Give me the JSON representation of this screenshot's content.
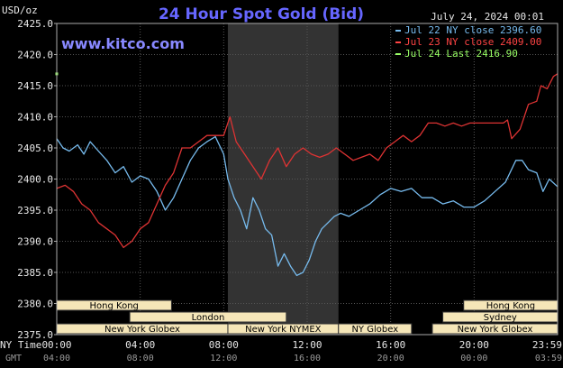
{
  "chart_data": {
    "type": "line",
    "title": "24 Hour Spot Gold (Bid)",
    "site": "www.kitco.com",
    "date_label": "July 24, 2024 00:01",
    "ylabel": "USD/oz",
    "ylim": [
      2375,
      2425
    ],
    "y_ticks": [
      "2425.0",
      "2420.0",
      "2415.0",
      "2410.0",
      "2405.0",
      "2400.0",
      "2395.0",
      "2390.0",
      "2385.0",
      "2380.0",
      "2375.0"
    ],
    "x_axis_label": "NY Time",
    "gmt_label": "GMT",
    "x_ticks_ny": [
      "00:00",
      "04:00",
      "08:00",
      "12:00",
      "16:00",
      "20:00",
      "23:59"
    ],
    "x_ticks_gmt": [
      "04:00",
      "08:00",
      "12:00",
      "16:00",
      "20:00",
      "00:00",
      "03:59"
    ],
    "colors": {
      "jul22": "#77bbee",
      "jul23": "#dd3333",
      "jul24": "#99ff66",
      "shade": "#333333",
      "grid": "#555555"
    },
    "legend": [
      {
        "label": "Jul 22 NY close 2396.60",
        "color": "#77bbee"
      },
      {
        "label": "Jul 23 NY close 2409.00",
        "color": "#ff4444"
      },
      {
        "label": "Jul 24 Last 2416.90",
        "color": "#99ff66"
      }
    ],
    "sessions": [
      {
        "label": "Hong Kong",
        "start_h": 0,
        "end_h": 5.5,
        "row": 0
      },
      {
        "label": "London",
        "start_h": 3.5,
        "end_h": 11.0,
        "row": 1
      },
      {
        "label": "New York Globex",
        "start_h": 0,
        "end_h": 8.2,
        "row": 2
      },
      {
        "label": "New York NYMEX",
        "start_h": 8.2,
        "end_h": 13.5,
        "row": 2
      },
      {
        "label": "NY Globex",
        "start_h": 13.5,
        "end_h": 17.0,
        "row": 2
      },
      {
        "label": "Hong Kong",
        "start_h": 19.5,
        "end_h": 24.0,
        "row": 0
      },
      {
        "label": "Sydney",
        "start_h": 18.5,
        "end_h": 24.0,
        "row": 1
      },
      {
        "label": "New York Globex",
        "start_h": 18.0,
        "end_h": 24.0,
        "row": 2
      }
    ],
    "shaded_hours": [
      8.2,
      13.5
    ],
    "series": [
      {
        "name": "Jul 22",
        "color": "#77bbee",
        "x": [
          0,
          0.3,
          0.6,
          1,
          1.3,
          1.6,
          2,
          2.4,
          2.8,
          3.2,
          3.6,
          4,
          4.4,
          4.8,
          5.2,
          5.6,
          6,
          6.4,
          6.8,
          7.2,
          7.6,
          8,
          8.2,
          8.5,
          8.8,
          9.1,
          9.4,
          9.7,
          10,
          10.3,
          10.6,
          10.9,
          11.2,
          11.5,
          11.8,
          12.1,
          12.4,
          12.7,
          13,
          13.3,
          13.6,
          14,
          14.5,
          15,
          15.5,
          16,
          16.5,
          17,
          17.5,
          18,
          18.5,
          19,
          19.5,
          20,
          20.5,
          21,
          21.5,
          22,
          22.3,
          22.6,
          23,
          23.3,
          23.6,
          23.99
        ],
        "y": [
          2406.5,
          2405,
          2404.5,
          2405.5,
          2404,
          2406,
          2404.5,
          2403,
          2401,
          2402,
          2399.5,
          2400.5,
          2400,
          2398,
          2395,
          2397,
          2400,
          2403,
          2405,
          2406,
          2406.8,
          2404,
          2400,
          2397,
          2395,
          2392,
          2397,
          2395,
          2392,
          2391,
          2386,
          2388,
          2386,
          2384.5,
          2385,
          2387,
          2390,
          2392,
          2393,
          2394,
          2394.5,
          2394,
          2395,
          2396,
          2397.5,
          2398.5,
          2398,
          2398.5,
          2397,
          2397,
          2396,
          2396.5,
          2395.5,
          2395.5,
          2396.5,
          2398,
          2399.5,
          2403,
          2403,
          2401.5,
          2401,
          2398,
          2400,
          2398.8
        ]
      },
      {
        "name": "Jul 23",
        "color": "#dd3333",
        "x": [
          0,
          0.4,
          0.8,
          1.2,
          1.6,
          2,
          2.4,
          2.8,
          3.2,
          3.6,
          4,
          4.4,
          4.8,
          5.2,
          5.6,
          6,
          6.4,
          6.8,
          7.2,
          7.6,
          8,
          8.3,
          8.6,
          9,
          9.4,
          9.8,
          10.2,
          10.6,
          11,
          11.4,
          11.8,
          12.2,
          12.6,
          13,
          13.4,
          13.8,
          14.2,
          14.6,
          15,
          15.4,
          15.8,
          16.2,
          16.6,
          17,
          17.4,
          17.8,
          18.2,
          18.6,
          19,
          19.4,
          19.8,
          20.2,
          20.6,
          21,
          21.4,
          21.6,
          21.8,
          22.2,
          22.6,
          23,
          23.2,
          23.5,
          23.8,
          23.99
        ],
        "y": [
          2398.5,
          2399,
          2398,
          2396,
          2395,
          2393,
          2392,
          2391,
          2389,
          2390,
          2392,
          2393,
          2396,
          2399,
          2401,
          2405,
          2405,
          2406,
          2407,
          2407,
          2407,
          2410,
          2406,
          2404,
          2402,
          2400,
          2403,
          2405,
          2402,
          2404,
          2405,
          2404,
          2403.5,
          2404,
          2405,
          2404,
          2403,
          2403.5,
          2404,
          2403,
          2405,
          2406,
          2407,
          2406,
          2407,
          2409,
          2409,
          2408.5,
          2409,
          2408.5,
          2409,
          2409,
          2409,
          2409,
          2409,
          2409.5,
          2406.5,
          2408,
          2412,
          2412.5,
          2415,
          2414.5,
          2416.5,
          2416.9
        ]
      }
    ],
    "last_marker": {
      "hour": 0,
      "value": 2416.9
    }
  }
}
